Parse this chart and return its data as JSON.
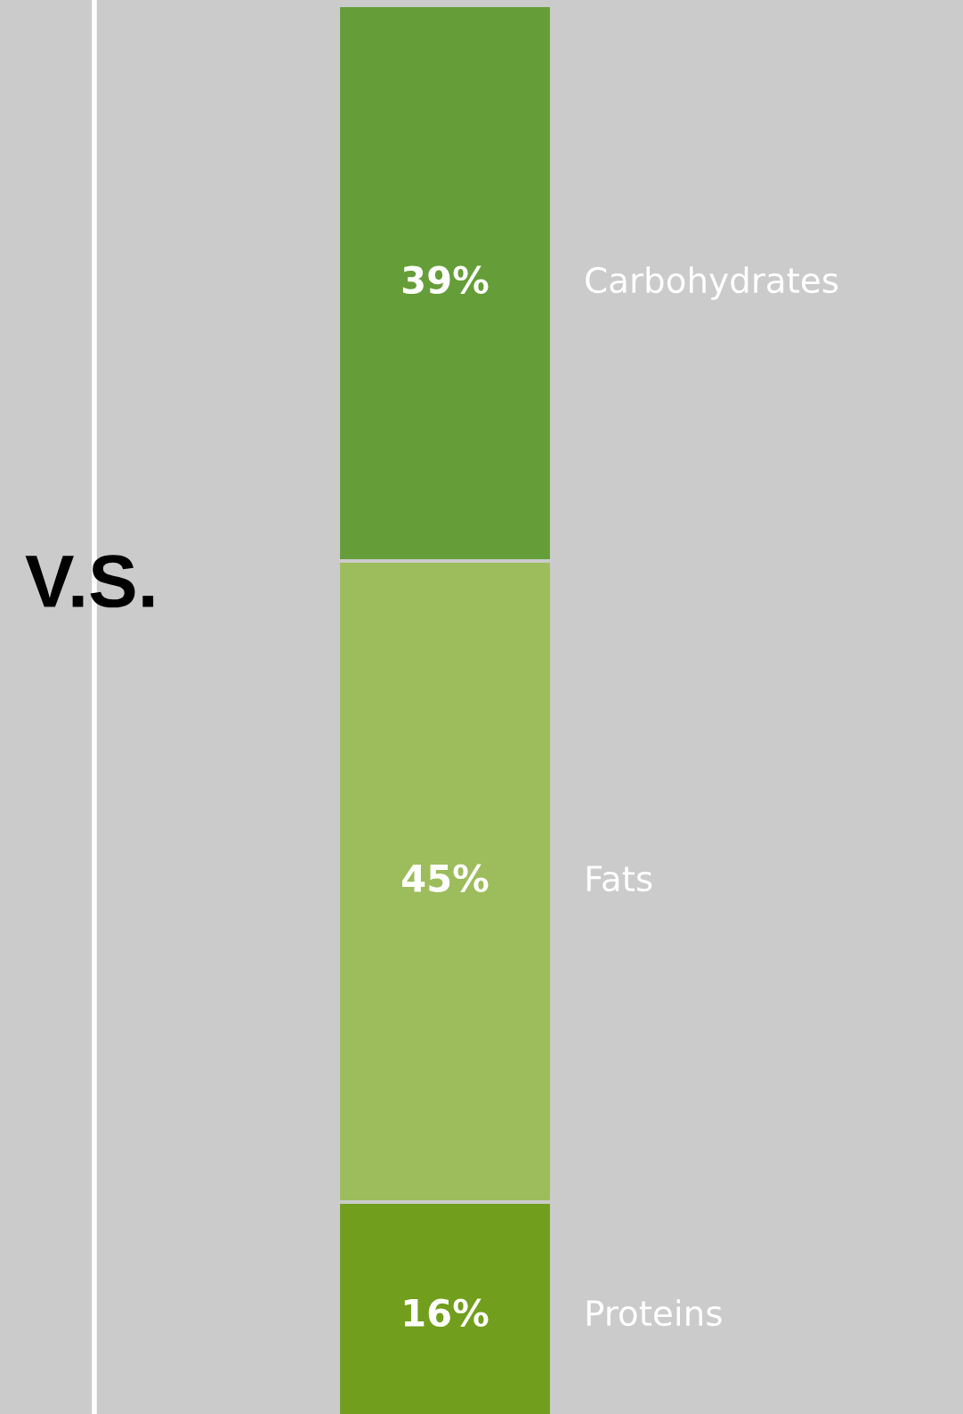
{
  "chart_data": {
    "type": "bar",
    "stacked": true,
    "categories": [
      null
    ],
    "ylim": [
      0,
      100
    ],
    "series": [
      {
        "name": "Proteins",
        "color": "#719e1c",
        "values": [
          16
        ],
        "value_labels": [
          "16%"
        ]
      },
      {
        "name": "Fats",
        "color": "#9dbc5c",
        "values": [
          45
        ],
        "value_labels": [
          "45%"
        ]
      },
      {
        "name": "Carbohydrates",
        "color": "#659e38",
        "values": [
          39
        ],
        "value_labels": [
          "39%"
        ]
      }
    ],
    "annotations": [
      "V.S."
    ]
  }
}
